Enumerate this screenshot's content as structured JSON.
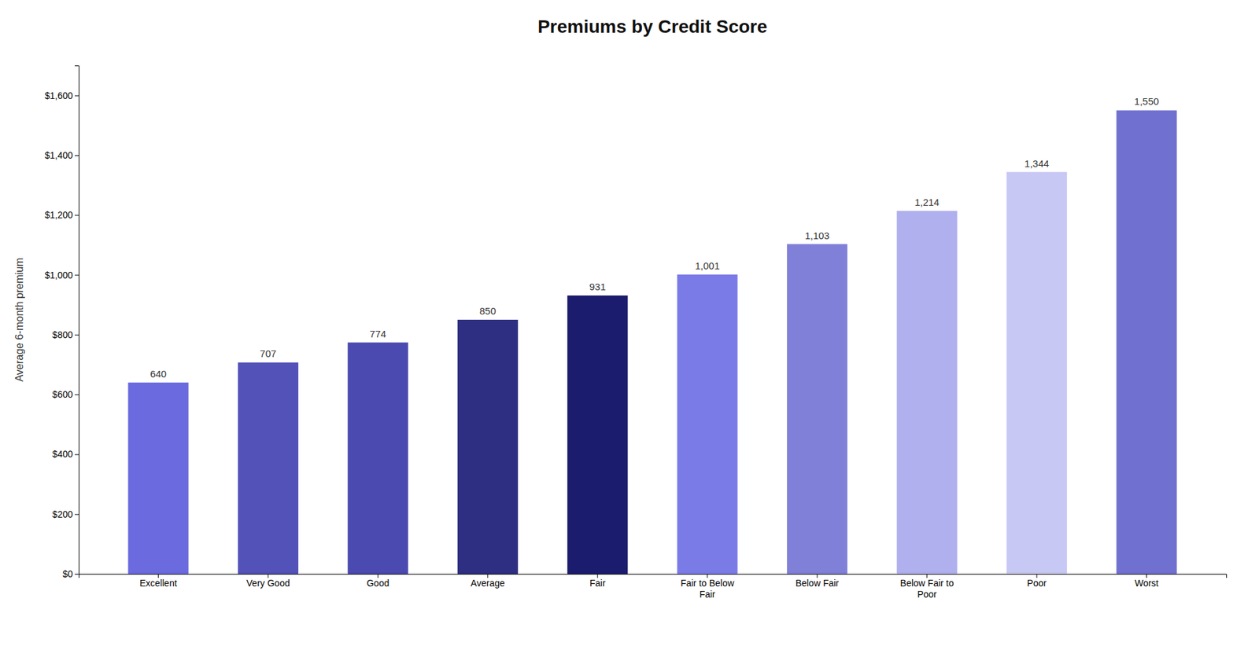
{
  "chart_data": {
    "type": "bar",
    "title": "Premiums by Credit Score",
    "categories": [
      "Excellent",
      "Very Good",
      "Good",
      "Average",
      "Fair",
      "Fair to Below\nFair",
      "Below Fair",
      "Below Fair to\nPoor",
      "Poor",
      "Worst"
    ],
    "values": [
      640,
      707,
      774,
      850,
      931,
      1001,
      1103,
      1214,
      1344,
      1550
    ],
    "value_labels": [
      "640",
      "707",
      "774",
      "850",
      "931",
      "1,001",
      "1,103",
      "1,214",
      "1,344",
      "1,550"
    ],
    "colors": [
      "#6b6bdf",
      "#5252b8",
      "#4a4ab0",
      "#2e2e82",
      "#1c1c6e",
      "#7b7be8",
      "#8080d8",
      "#b0b0ee",
      "#c8c8f5",
      "#7070d0"
    ],
    "ylabel": "Average 6-month premium",
    "ylim": [
      0,
      1700
    ],
    "yticks": [
      {
        "value": 0,
        "label": "$0"
      },
      {
        "value": 200,
        "label": "$200"
      },
      {
        "value": 400,
        "label": "$400"
      },
      {
        "value": 600,
        "label": "$600"
      },
      {
        "value": 800,
        "label": "$800"
      },
      {
        "value": 1000,
        "label": "$1,000"
      },
      {
        "value": 1200,
        "label": "$1,200"
      },
      {
        "value": 1400,
        "label": "$1,400"
      },
      {
        "value": 1600,
        "label": "$1,600"
      }
    ],
    "data_labels": true,
    "grid": false
  }
}
